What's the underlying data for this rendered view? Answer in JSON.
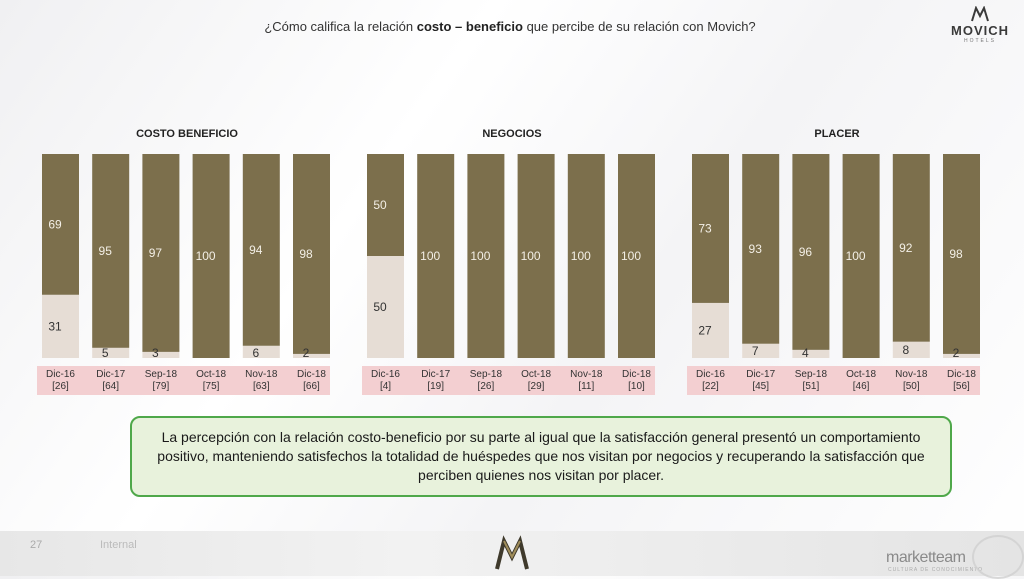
{
  "header": {
    "question_part1": "¿Cómo califica la relación ",
    "question_bold": "costo – beneficio",
    "question_part2": " que percibe de su relación con Movich?"
  },
  "logo": {
    "name": "MOVICH",
    "sub": "HOTELS"
  },
  "colors": {
    "top": "#7c6f4c",
    "bottom": "#e6ddd5",
    "label_band": "#f3cfd1"
  },
  "chart_data": [
    {
      "type": "bar",
      "title": "COSTO BENEFICIO",
      "categories": [
        "Dic-16",
        "Dic-17",
        "Sep-18",
        "Oct-18",
        "Nov-18",
        "Dic-18"
      ],
      "bases": [
        "[26]",
        "[64]",
        "[79]",
        "[75]",
        "[63]",
        "[66]"
      ],
      "stacked": true,
      "series": [
        {
          "values": [
            69,
            95,
            97,
            100,
            94,
            98
          ]
        },
        {
          "values": [
            31,
            5,
            3,
            0,
            6,
            2
          ]
        }
      ],
      "ylim": [
        0,
        100
      ]
    },
    {
      "type": "bar",
      "title": "NEGOCIOS",
      "categories": [
        "Dic-16",
        "Dic-17",
        "Sep-18",
        "Oct-18",
        "Nov-18",
        "Dic-18"
      ],
      "bases": [
        "[4]",
        "[19]",
        "[26]",
        "[29]",
        "[11]",
        "[10]"
      ],
      "stacked": true,
      "series": [
        {
          "values": [
            50,
            100,
            100,
            100,
            100,
            100
          ]
        },
        {
          "values": [
            50,
            0,
            0,
            0,
            0,
            0
          ]
        }
      ],
      "ylim": [
        0,
        100
      ]
    },
    {
      "type": "bar",
      "title": "PLACER",
      "categories": [
        "Dic-16",
        "Dic-17",
        "Sep-18",
        "Oct-18",
        "Nov-18",
        "Dic-18"
      ],
      "bases": [
        "[22]",
        "[45]",
        "[51]",
        "[46]",
        "[50]",
        "[56]"
      ],
      "stacked": true,
      "series": [
        {
          "values": [
            73,
            93,
            96,
            100,
            92,
            98
          ]
        },
        {
          "values": [
            27,
            7,
            4,
            0,
            8,
            2
          ]
        }
      ],
      "ylim": [
        0,
        100
      ]
    }
  ],
  "summary": "La percepción con la relación costo-beneficio por su parte al igual que la satisfacción general presentó un comportamiento positivo, manteniendo satisfechos la totalidad de huéspedes que nos visitan por negocios y recuperando la satisfacción que perciben quienes nos visitan por placer.",
  "footer": {
    "page": "27",
    "internal": "Internal",
    "brand": "marketteam",
    "brand_sub": "CULTURA DE CONOCIMIENTO"
  }
}
